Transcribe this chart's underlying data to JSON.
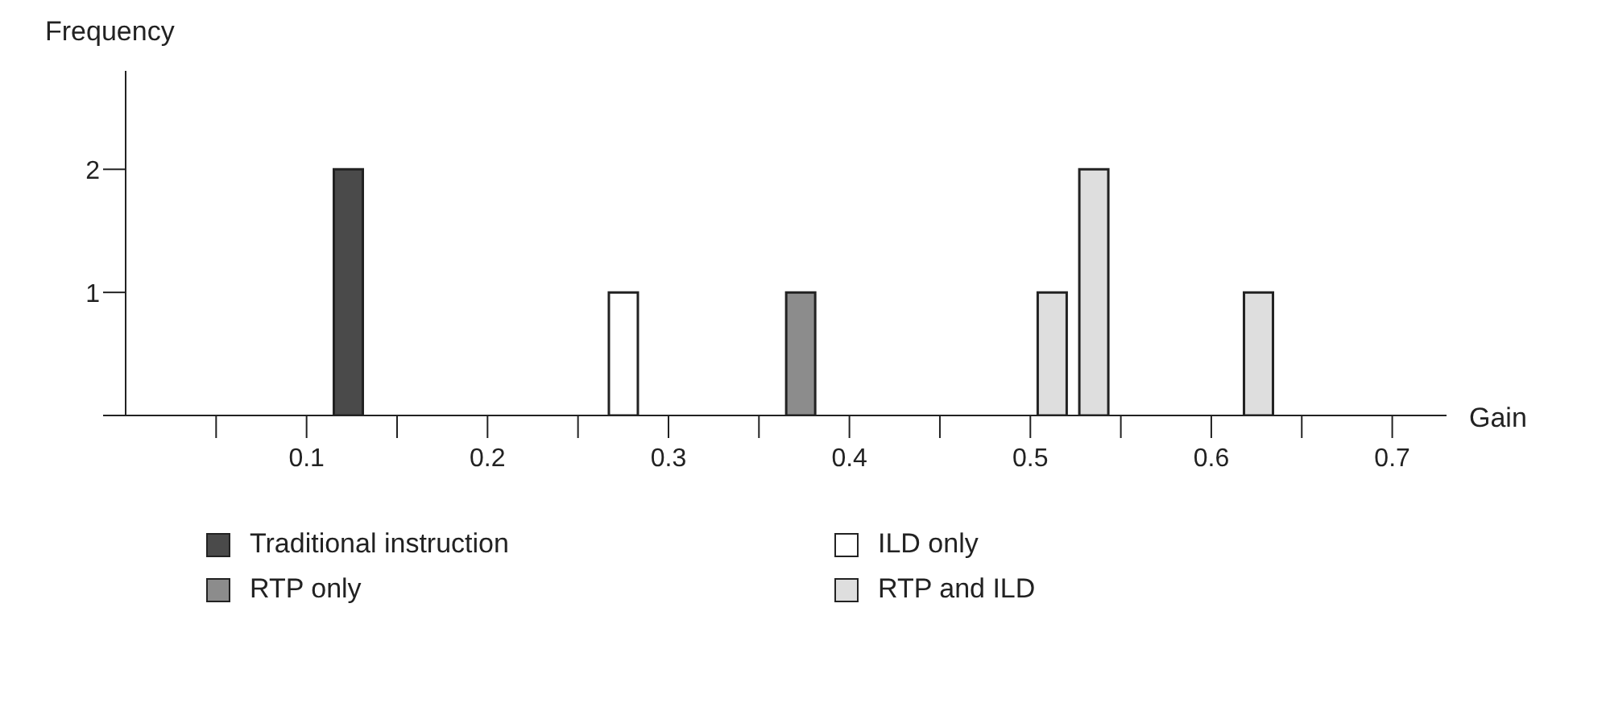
{
  "chart_data": {
    "type": "bar",
    "xlabel": "Gain",
    "ylabel": "Frequency",
    "series": [
      {
        "name": "Traditional instruction",
        "color": "#4a4a4a",
        "x": [
          0.123
        ],
        "values": [
          2
        ]
      },
      {
        "name": "ILD only",
        "color": "#ffffff",
        "x": [
          0.275
        ],
        "values": [
          1
        ]
      },
      {
        "name": "RTP only",
        "color": "#8c8c8c",
        "x": [
          0.373
        ],
        "values": [
          1
        ]
      },
      {
        "name": "RTP and ILD",
        "color": "#dedede",
        "x": [
          0.512,
          0.535,
          0.626
        ],
        "values": [
          1,
          2,
          1
        ]
      }
    ],
    "xlim": [
      0,
      0.73
    ],
    "xticks": [
      {
        "value": 0.05,
        "label": null
      },
      0.1,
      {
        "value": 0.15,
        "label": null
      },
      0.2,
      {
        "value": 0.25,
        "label": null
      },
      0.3,
      {
        "value": 0.35,
        "label": null
      },
      0.4,
      {
        "value": 0.45,
        "label": null
      },
      0.5,
      {
        "value": 0.55,
        "label": null
      },
      0.6,
      {
        "value": 0.65,
        "label": null
      },
      0.7
    ],
    "ylim": [
      0,
      2.8
    ],
    "yticks": [
      {
        "value": 0,
        "label": null
      },
      1,
      2
    ],
    "grid": false,
    "legend": "bottom"
  }
}
